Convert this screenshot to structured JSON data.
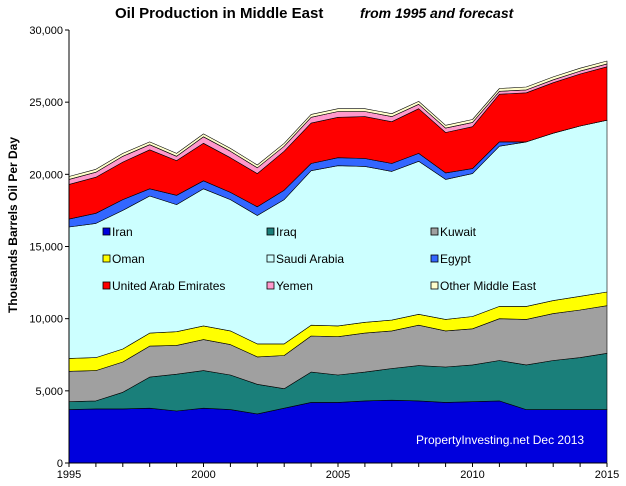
{
  "chart_data": {
    "type": "area",
    "stacked": true,
    "title": "Oil Production  in  Middle  East",
    "subtitle": "from 1995 and forecast",
    "xlabel": "",
    "ylabel": "Thousands Barrels Oil Per Day",
    "xlim": [
      1995,
      2015
    ],
    "ylim": [
      0,
      30000
    ],
    "x_ticks": [
      1995,
      2000,
      2005,
      2010,
      2015
    ],
    "y_ticks": [
      "0",
      "5,000",
      "10,000",
      "15,000",
      "20,000",
      "25,000",
      "30,000"
    ],
    "grid": false,
    "legend_position": "inside-center",
    "annotation": "PropertyInvesting.net  Dec 2013",
    "x": [
      1995,
      1996,
      1997,
      1998,
      1999,
      2000,
      2001,
      2002,
      2003,
      2004,
      2005,
      2006,
      2007,
      2008,
      2009,
      2010,
      2011,
      2012,
      2013,
      2014,
      2015
    ],
    "series": [
      {
        "name": "Iran",
        "color": "#0000dd",
        "values": [
          3700,
          3750,
          3750,
          3800,
          3600,
          3800,
          3700,
          3400,
          3800,
          4200,
          4200,
          4300,
          4350,
          4300,
          4200,
          4250,
          4300,
          3700,
          3700,
          3700,
          3700
        ]
      },
      {
        "name": "Iraq",
        "color": "#1a7f7a",
        "values": [
          550,
          550,
          1150,
          2150,
          2550,
          2600,
          2400,
          2050,
          1350,
          2100,
          1900,
          2000,
          2200,
          2450,
          2450,
          2550,
          2800,
          3100,
          3400,
          3600,
          3900
        ]
      },
      {
        "name": "Kuwait",
        "color": "#a0a0a0",
        "values": [
          2100,
          2100,
          2100,
          2150,
          2000,
          2150,
          2100,
          1900,
          2300,
          2500,
          2650,
          2700,
          2600,
          2800,
          2500,
          2500,
          2900,
          3150,
          3250,
          3300,
          3300
        ]
      },
      {
        "name": "Oman",
        "color": "#ffff00",
        "values": [
          900,
          900,
          900,
          900,
          950,
          950,
          950,
          900,
          800,
          750,
          750,
          750,
          750,
          750,
          800,
          850,
          850,
          900,
          900,
          950,
          950
        ]
      },
      {
        "name": "Saudi Arabia",
        "color": "#ccffff",
        "values": [
          9100,
          9300,
          9600,
          9500,
          8800,
          9500,
          9100,
          8900,
          10000,
          10700,
          11100,
          10800,
          10300,
          10600,
          9700,
          9900,
          11100,
          11400,
          11600,
          11800,
          11900
        ]
      },
      {
        "name": "Egypt",
        "color": "#3366ff",
        "values": [
          550,
          700,
          750,
          500,
          650,
          550,
          500,
          600,
          650,
          500,
          550,
          550,
          550,
          550,
          450,
          350,
          300,
          0,
          0,
          0,
          0
        ]
      },
      {
        "name": "United Arab Emirates",
        "color": "#ff0000",
        "values": [
          2400,
          2500,
          2600,
          2700,
          2400,
          2600,
          2400,
          2300,
          2700,
          2800,
          2800,
          2900,
          2900,
          3100,
          2800,
          2900,
          3300,
          3400,
          3500,
          3600,
          3700
        ]
      },
      {
        "name": "Yemen",
        "color": "#ff99cc",
        "values": [
          350,
          350,
          400,
          350,
          300,
          450,
          450,
          400,
          350,
          400,
          400,
          350,
          350,
          300,
          300,
          300,
          200,
          200,
          200,
          200,
          200
        ]
      },
      {
        "name": "Other Middle East",
        "color": "#ffffcc",
        "values": [
          200,
          200,
          200,
          200,
          200,
          200,
          200,
          200,
          200,
          200,
          200,
          200,
          200,
          200,
          200,
          200,
          200,
          200,
          200,
          200,
          200
        ]
      }
    ]
  }
}
